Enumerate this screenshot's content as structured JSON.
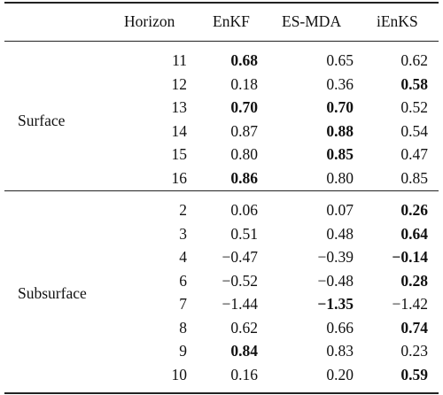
{
  "table": {
    "headers": [
      "Horizon",
      "EnKF",
      "ES-MDA",
      "iEnKS"
    ],
    "groups": [
      {
        "name": "Surface",
        "rows": [
          {
            "horizon": "11",
            "values": [
              "0.68",
              "0.65",
              "0.62"
            ],
            "bold": [
              true,
              false,
              false
            ]
          },
          {
            "horizon": "12",
            "values": [
              "0.18",
              "0.36",
              "0.58"
            ],
            "bold": [
              false,
              false,
              true
            ]
          },
          {
            "horizon": "13",
            "values": [
              "0.70",
              "0.70",
              "0.52"
            ],
            "bold": [
              true,
              true,
              false
            ]
          },
          {
            "horizon": "14",
            "values": [
              "0.87",
              "0.88",
              "0.54"
            ],
            "bold": [
              false,
              true,
              false
            ]
          },
          {
            "horizon": "15",
            "values": [
              "0.80",
              "0.85",
              "0.47"
            ],
            "bold": [
              false,
              true,
              false
            ]
          },
          {
            "horizon": "16",
            "values": [
              "0.86",
              "0.80",
              "0.85"
            ],
            "bold": [
              true,
              false,
              false
            ]
          }
        ]
      },
      {
        "name": "Subsurface",
        "rows": [
          {
            "horizon": "2",
            "values": [
              "0.06",
              "0.07",
              "0.26"
            ],
            "bold": [
              false,
              false,
              true
            ]
          },
          {
            "horizon": "3",
            "values": [
              "0.51",
              "0.48",
              "0.64"
            ],
            "bold": [
              false,
              false,
              true
            ]
          },
          {
            "horizon": "4",
            "values": [
              "−0.47",
              "−0.39",
              "−0.14"
            ],
            "bold": [
              false,
              false,
              true
            ]
          },
          {
            "horizon": "6",
            "values": [
              "−0.52",
              "−0.48",
              "0.28"
            ],
            "bold": [
              false,
              false,
              true
            ]
          },
          {
            "horizon": "7",
            "values": [
              "−1.44",
              "−1.35",
              "−1.42"
            ],
            "bold": [
              false,
              true,
              false
            ]
          },
          {
            "horizon": "8",
            "values": [
              "0.62",
              "0.66",
              "0.74"
            ],
            "bold": [
              false,
              false,
              true
            ]
          },
          {
            "horizon": "9",
            "values": [
              "0.84",
              "0.83",
              "0.23"
            ],
            "bold": [
              true,
              false,
              false
            ]
          },
          {
            "horizon": "10",
            "values": [
              "0.16",
              "0.20",
              "0.59"
            ],
            "bold": [
              false,
              false,
              true
            ]
          }
        ]
      }
    ]
  }
}
